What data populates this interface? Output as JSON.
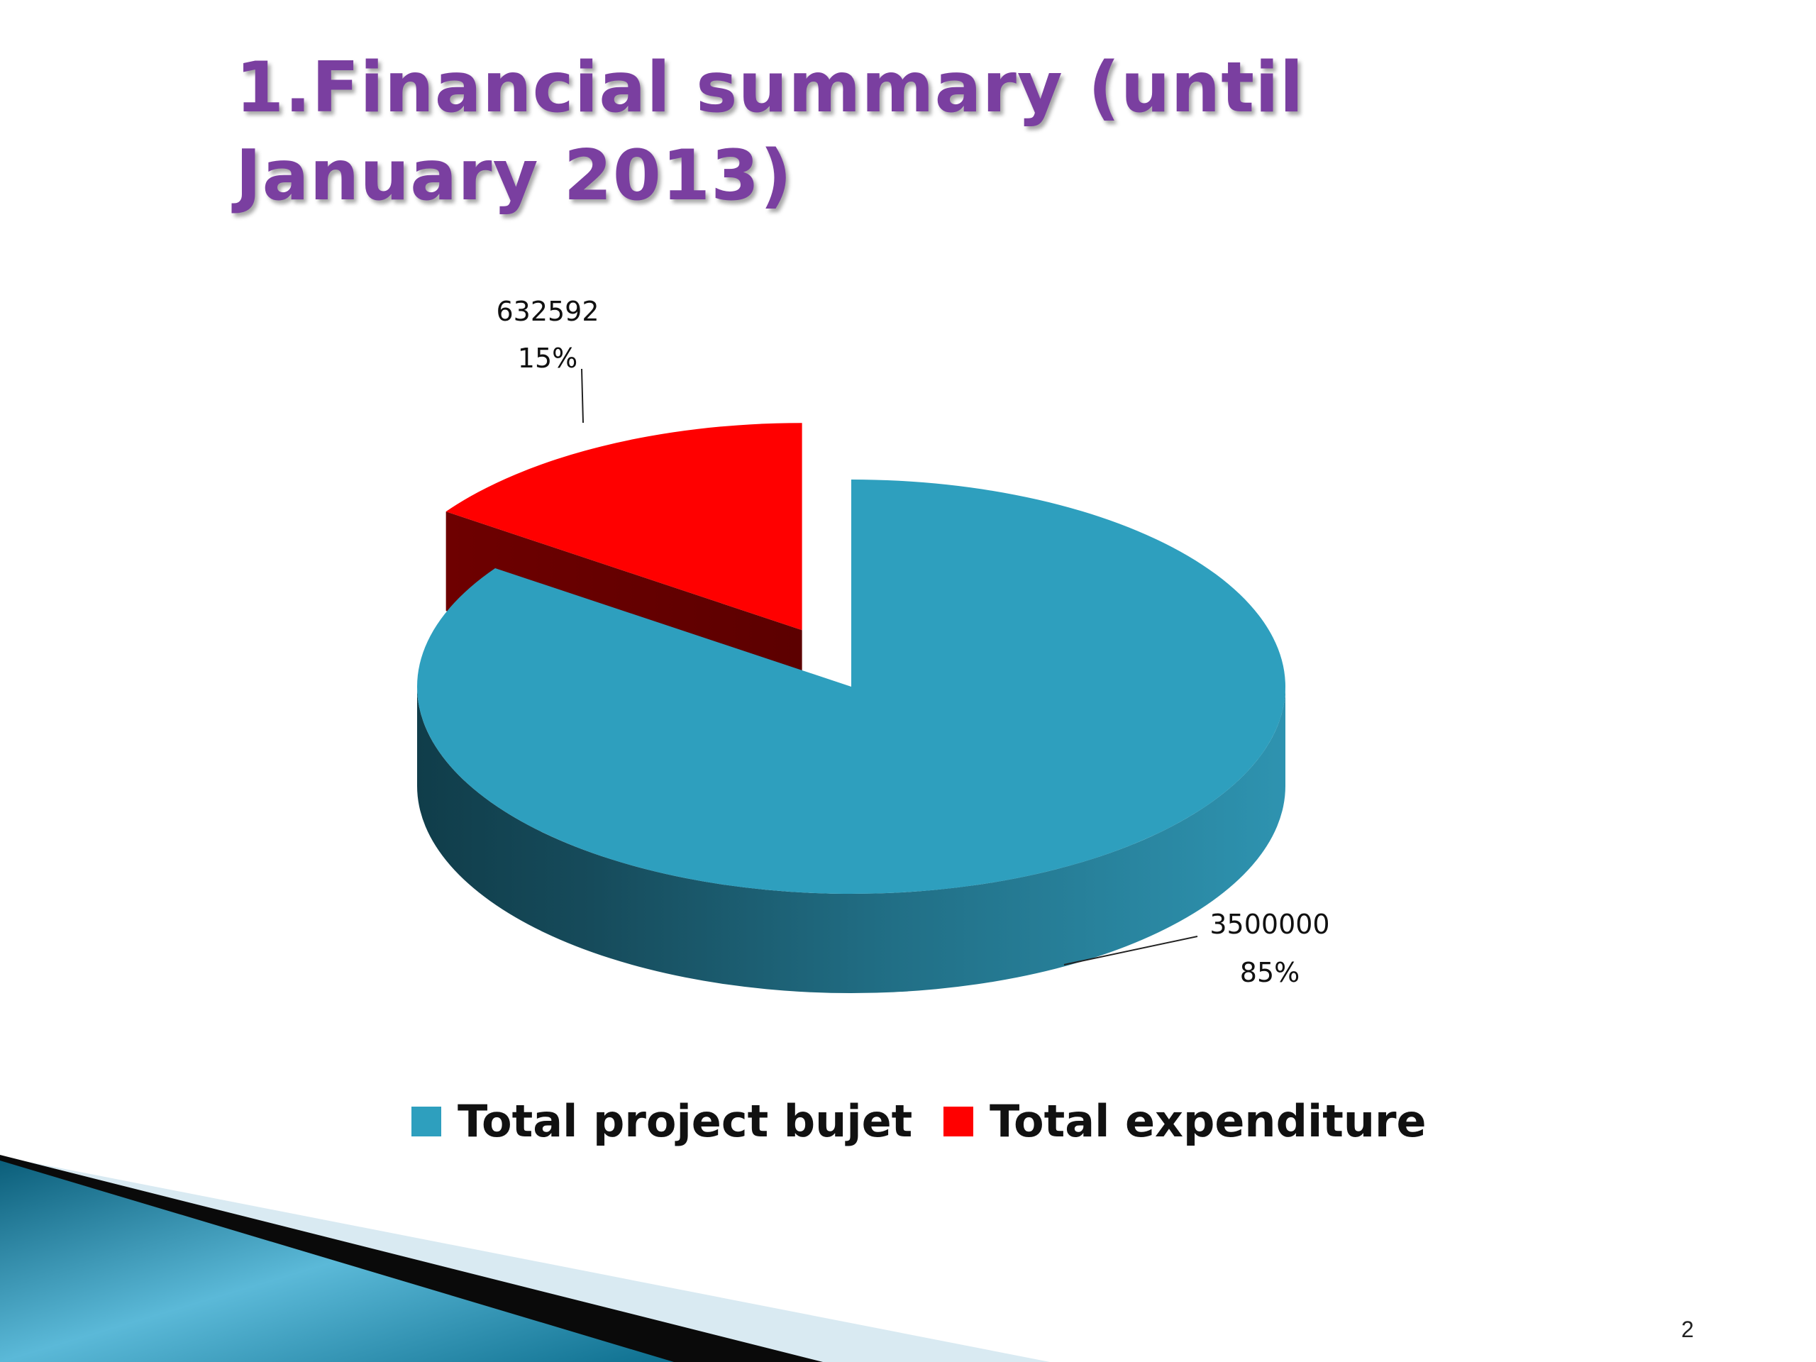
{
  "slide": {
    "title": "1.Financial summary (until January 2013)",
    "page_number": "2"
  },
  "chart_data": {
    "type": "pie",
    "style": "3d-exploded",
    "title": "",
    "legend_position": "bottom",
    "categories": [
      "Total project bujet",
      "Total expenditure"
    ],
    "values": [
      3500000,
      632592
    ],
    "labels": [
      {
        "value": "3500000",
        "percent": "85%"
      },
      {
        "value": "632592",
        "percent": "15%"
      }
    ],
    "colors": [
      "#2E9FBE",
      "#FF0000"
    ]
  },
  "colors": {
    "title": "#7A3FA0",
    "accent_dark": "#0B5E7A",
    "accent_light": "#5BB9D8"
  }
}
